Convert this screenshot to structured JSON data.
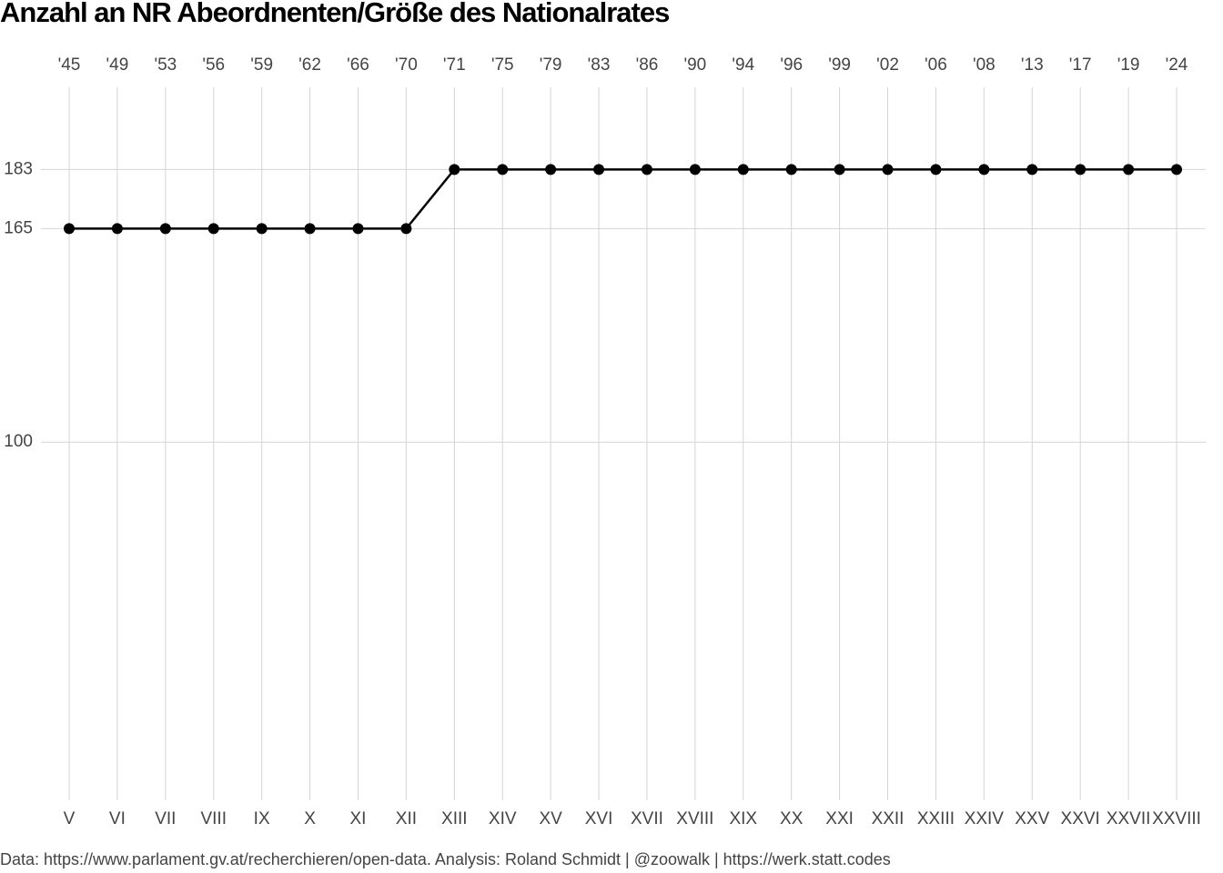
{
  "chart_data": {
    "type": "line",
    "title": "Anzahl an NR Abeordnenten/Größe des Nationalrates",
    "caption": "Data: https://www.parlament.gv.at/recherchieren/open-data. Analysis: Roland Schmidt | @zoowalk | https://werk.statt.codes",
    "categories": [
      "V",
      "VI",
      "VII",
      "VIII",
      "IX",
      "X",
      "XI",
      "XII",
      "XIII",
      "XIV",
      "XV",
      "XVI",
      "XVII",
      "XVIII",
      "XIX",
      "XX",
      "XXI",
      "XXII",
      "XXIII",
      "XXIV",
      "XXV",
      "XXVI",
      "XXVII",
      "XXVIII"
    ],
    "top_categories": [
      "'45",
      "'49",
      "'53",
      "'56",
      "'59",
      "'62",
      "'66",
      "'70",
      "'71",
      "'75",
      "'79",
      "'83",
      "'86",
      "'90",
      "'94",
      "'96",
      "'99",
      "'02",
      "'06",
      "'08",
      "'13",
      "'17",
      "'19",
      "'24"
    ],
    "series": [
      {
        "color": "#000000",
        "values": [
          165,
          165,
          165,
          165,
          165,
          165,
          165,
          165,
          183,
          183,
          183,
          183,
          183,
          183,
          183,
          183,
          183,
          183,
          183,
          183,
          183,
          183,
          183,
          183
        ]
      }
    ],
    "ylim": [
      -9,
      208
    ],
    "yticks": [
      100,
      165,
      183
    ],
    "grid": true
  }
}
